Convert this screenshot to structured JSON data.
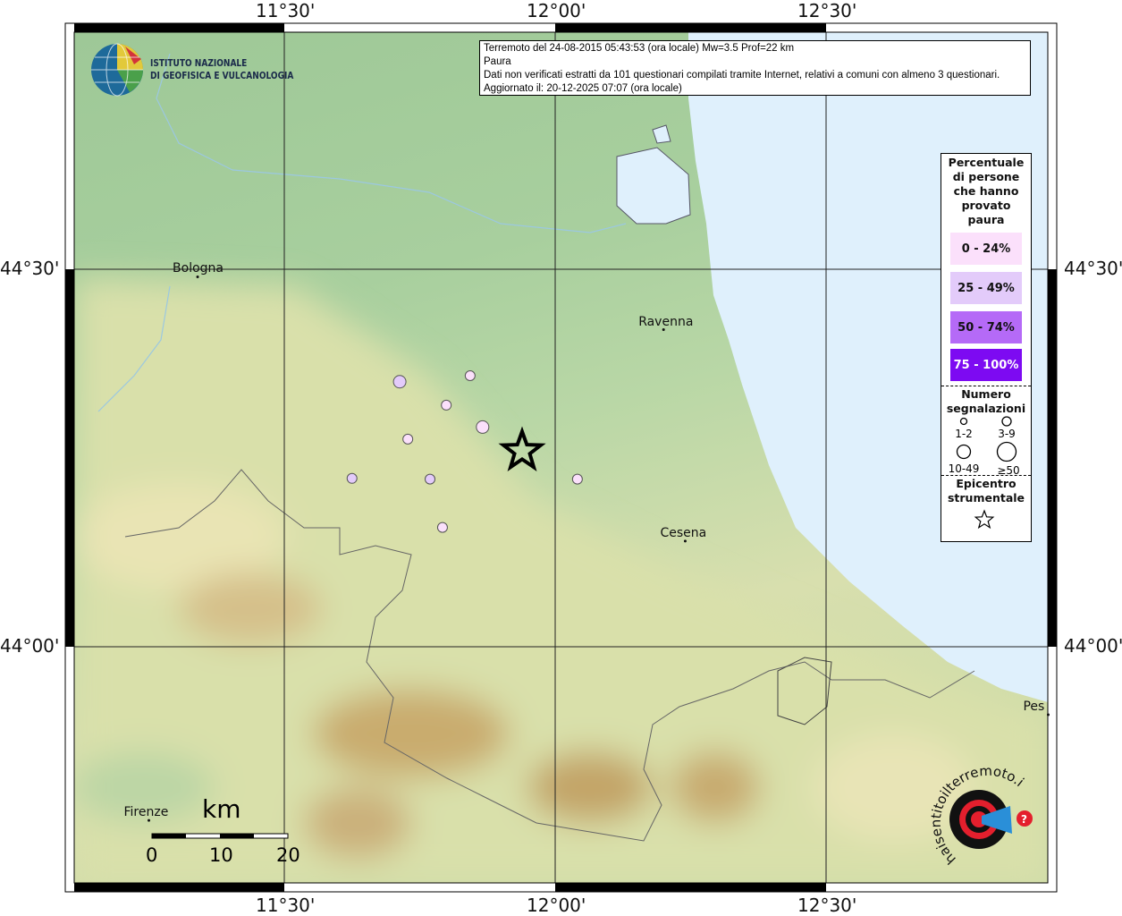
{
  "info_box": {
    "line1": "Terremoto del 24-08-2015 05:43:53 (ora locale) Mw=3.5 Prof=22 km",
    "line2": "Paura",
    "line3": "Dati non verificati estratti da 101 questionari compilati tramite Internet, relativi a comuni con almeno 3 questionari.",
    "line4": "Aggiornato il: 20-12-2025 07:07 (ora locale)"
  },
  "logo_ingv": {
    "line1": "ISTITUTO NAZIONALE",
    "line2": "DI GEOFISICA E VULCANOLOGIA"
  },
  "logo_hsit": "www.haisentitoilterremoto.it",
  "axes": {
    "lon_ticks": [
      "11°30'",
      "12°00'",
      "12°30'"
    ],
    "lat_ticks": [
      "44°30'",
      "44°00'"
    ]
  },
  "cities": [
    {
      "name": "Bologna",
      "lon": 11.34,
      "lat": 44.49
    },
    {
      "name": "Ravenna",
      "lon": 12.2,
      "lat": 44.42
    },
    {
      "name": "Cesena",
      "lon": 12.24,
      "lat": 44.14
    },
    {
      "name": "Firenze",
      "lon": 11.25,
      "lat": 43.77
    },
    {
      "name": "Pes",
      "lon": 12.91,
      "lat": 43.91
    }
  ],
  "legend": {
    "title": [
      "Percentuale",
      "di persone",
      "che hanno",
      "provato",
      "paura"
    ],
    "classes": [
      {
        "label": "0 - 24%",
        "color": "#fbe0fb",
        "text_color": "#111111"
      },
      {
        "label": "25 - 49%",
        "color": "#e3cbfa",
        "text_color": "#111111"
      },
      {
        "label": "50 - 74%",
        "color": "#b56af7",
        "text_color": "#111111"
      },
      {
        "label": "75 - 100%",
        "color": "#7d0af2",
        "text_color": "#ffffff"
      }
    ],
    "count_title": [
      "Numero",
      "segnalazioni"
    ],
    "count_classes": [
      "1-2",
      "3-9",
      "10-49",
      "≥50"
    ],
    "epicenter_title": [
      "Epicentro",
      "strumentale"
    ]
  },
  "scale_bar": {
    "unit": "km",
    "labels": [
      "0",
      "10",
      "20"
    ]
  },
  "epicenter": {
    "lon": 11.939,
    "lat": 44.259
  },
  "points": [
    {
      "lon": 11.713,
      "lat": 44.351,
      "class": 1,
      "count": "10-49"
    },
    {
      "lon": 11.843,
      "lat": 44.359,
      "class": 0,
      "count": "3-9"
    },
    {
      "lon": 11.799,
      "lat": 44.32,
      "class": 0,
      "count": "3-9"
    },
    {
      "lon": 11.866,
      "lat": 44.291,
      "class": 0,
      "count": "10-49"
    },
    {
      "lon": 11.728,
      "lat": 44.275,
      "class": 0,
      "count": "3-9"
    },
    {
      "lon": 11.625,
      "lat": 44.223,
      "class": 1,
      "count": "3-9"
    },
    {
      "lon": 11.769,
      "lat": 44.222,
      "class": 1,
      "count": "3-9"
    },
    {
      "lon": 11.792,
      "lat": 44.158,
      "class": 0,
      "count": "3-9"
    },
    {
      "lon": 12.041,
      "lat": 44.222,
      "class": 0,
      "count": "3-9"
    }
  ],
  "colors": {
    "sea": "#dff0fc",
    "plain": "#a9cf9f",
    "hills": "#e6e4b0",
    "mountains": "#b8975a"
  }
}
